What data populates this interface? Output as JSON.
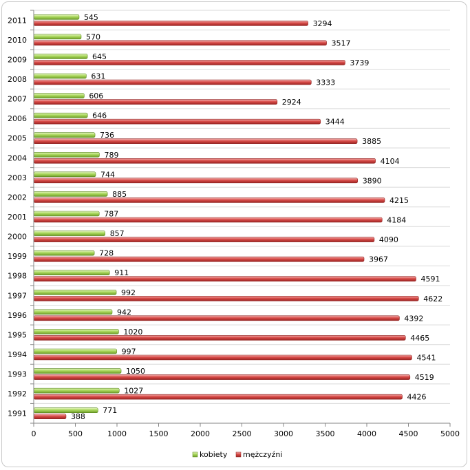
{
  "chart_data": {
    "type": "bar",
    "orientation": "horizontal",
    "title": "",
    "xlabel": "",
    "ylabel": "",
    "categories": [
      "1991",
      "1992",
      "1993",
      "1994",
      "1995",
      "1996",
      "1997",
      "1998",
      "1999",
      "2000",
      "2001",
      "2002",
      "2003",
      "2004",
      "2005",
      "2006",
      "2007",
      "2008",
      "2009",
      "2010",
      "2011"
    ],
    "series": [
      {
        "name": "kobiety",
        "values": [
          771,
          1027,
          1050,
          997,
          1020,
          942,
          992,
          911,
          728,
          857,
          787,
          885,
          744,
          789,
          736,
          646,
          606,
          631,
          645,
          570,
          545
        ]
      },
      {
        "name": "mężczyźni",
        "values": [
          388,
          4426,
          4519,
          4541,
          4465,
          4392,
          4622,
          4591,
          3967,
          4090,
          4184,
          4215,
          3890,
          4104,
          3885,
          3444,
          2924,
          3333,
          3739,
          3517,
          3294
        ]
      }
    ],
    "xlim": [
      0,
      5000
    ],
    "x_ticks": [
      "0",
      "500",
      "1000",
      "1500",
      "2000",
      "2500",
      "3000",
      "3500",
      "4000",
      "4500",
      "5000"
    ],
    "grid": true,
    "legend_position": "bottom",
    "colors": {
      "kobiety": "#9acd4e",
      "mężczyźni": "#d94c49"
    }
  }
}
